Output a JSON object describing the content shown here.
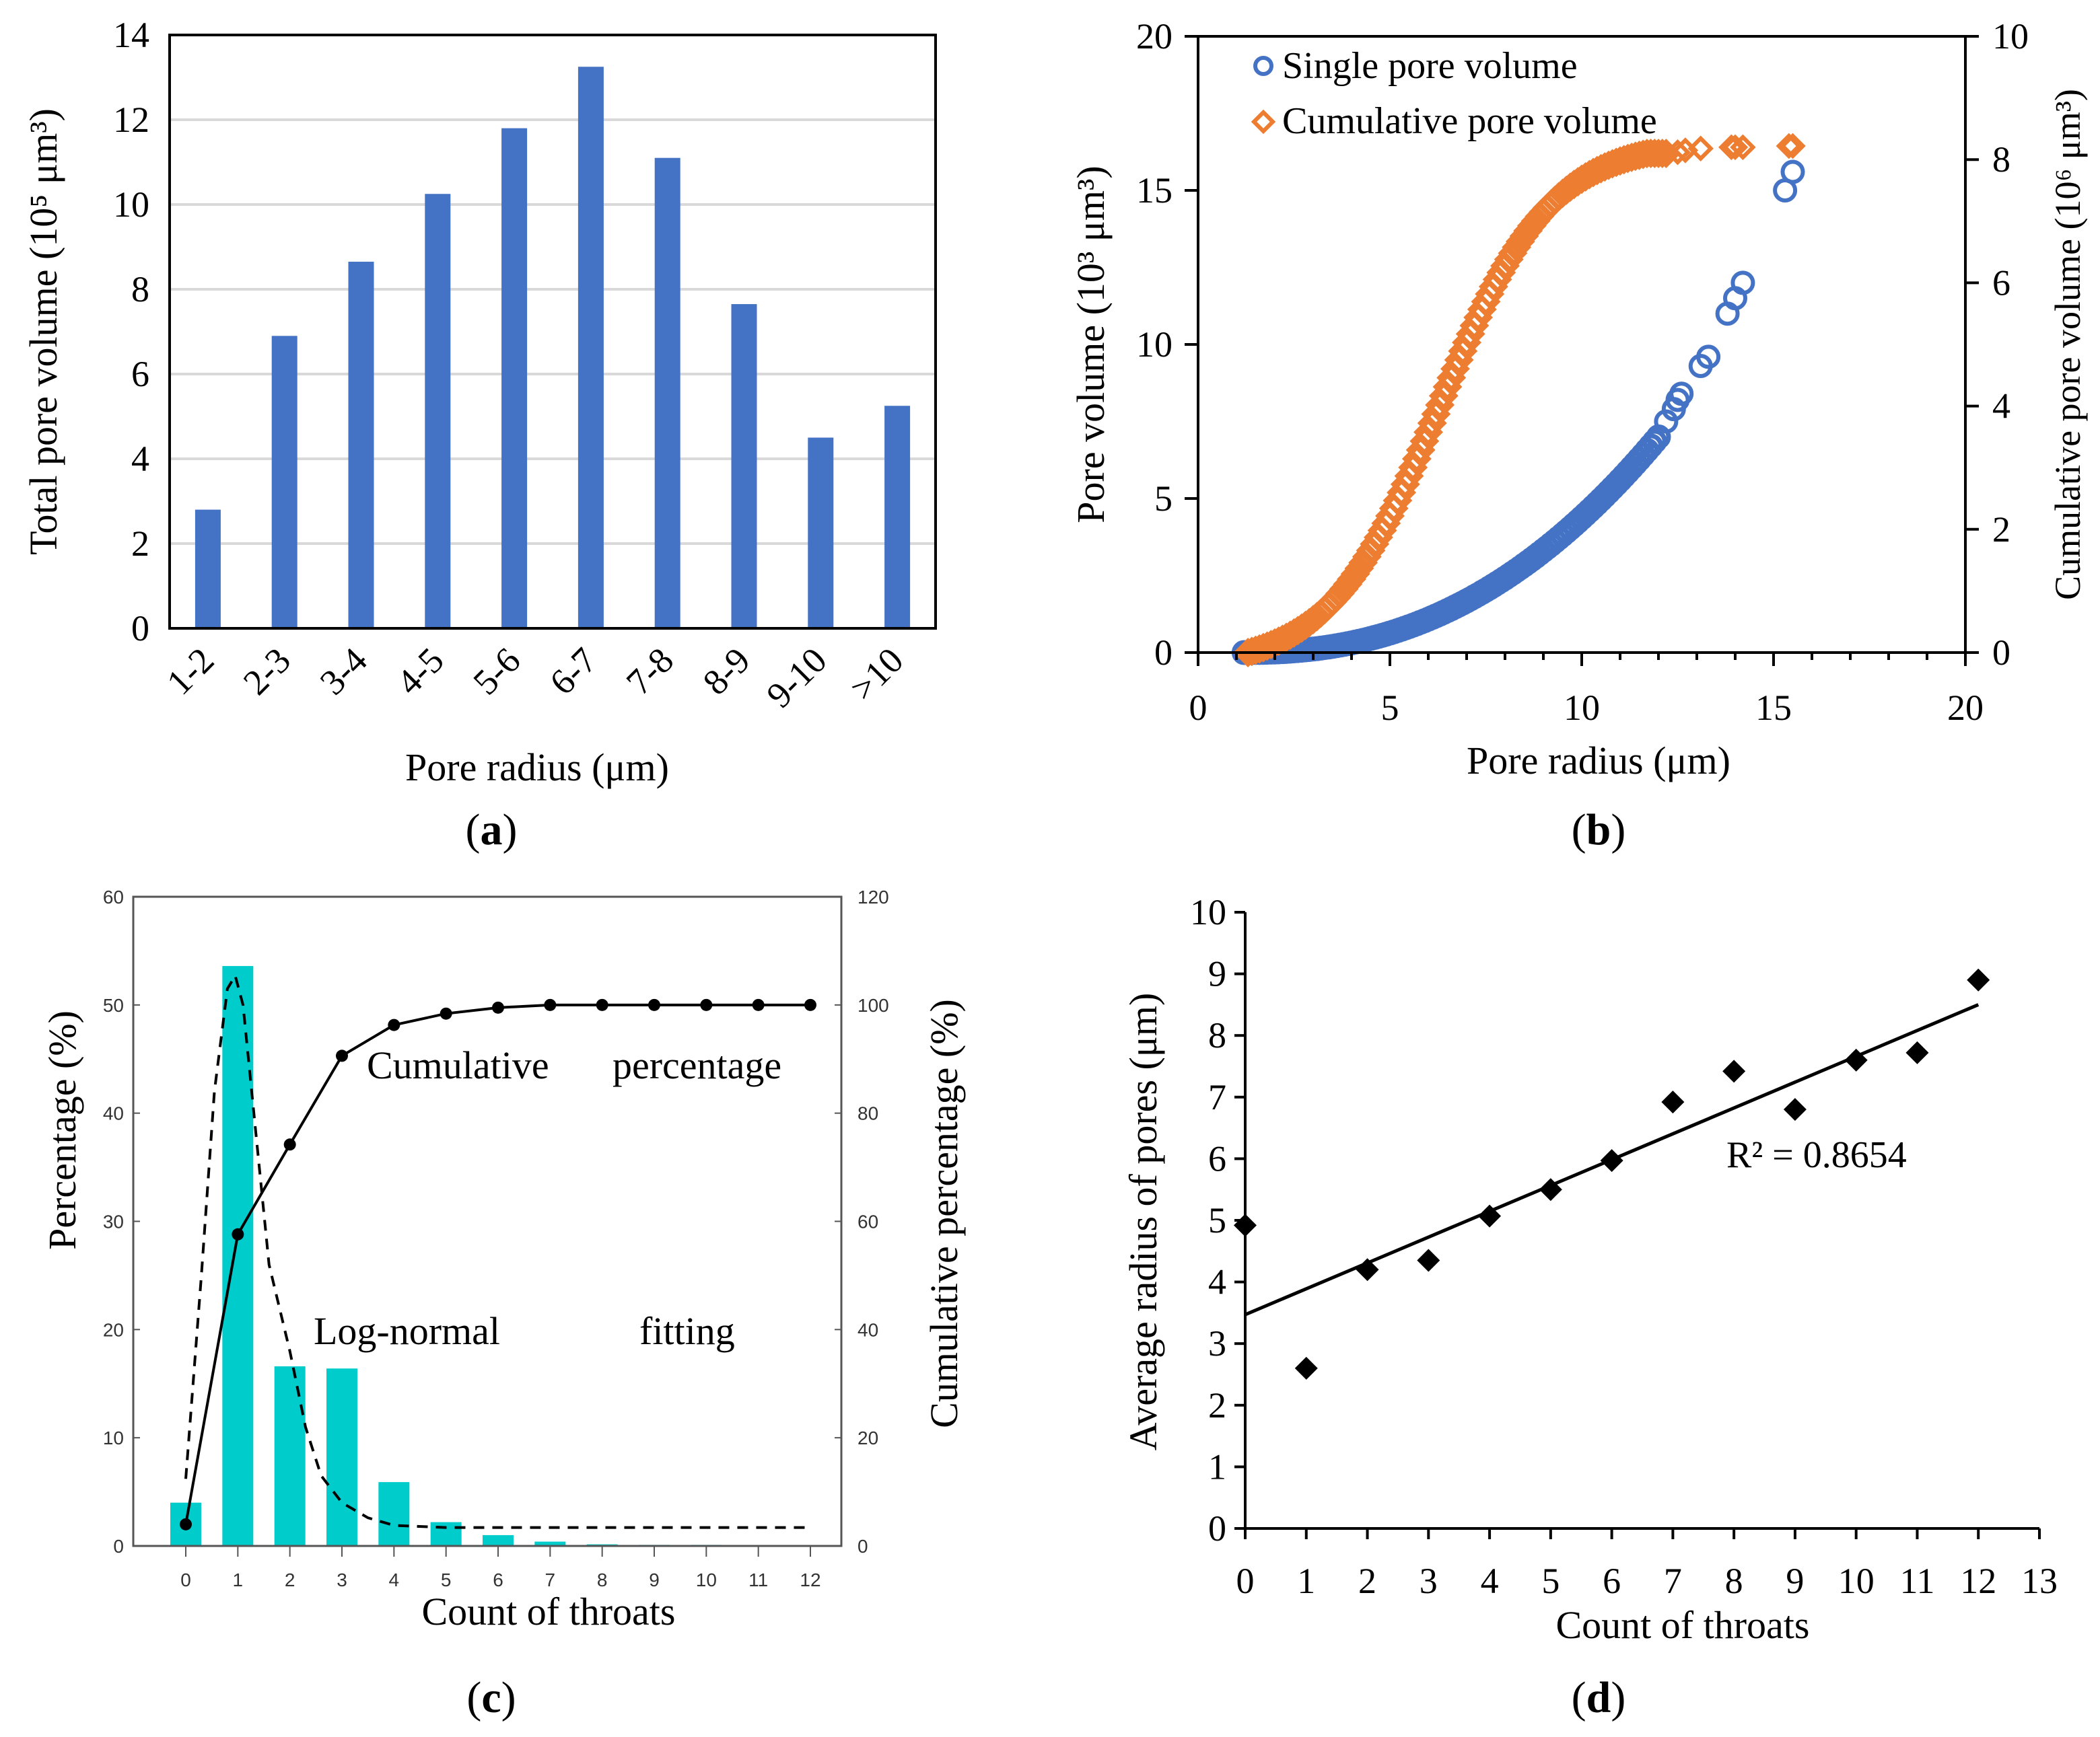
{
  "colors": {
    "bar_a": "#4472c4",
    "single": "#4472c4",
    "cumulative": "#ed7d31",
    "bar_c": "#00cccc",
    "grid": "#d9d9d9",
    "axis": "#000000"
  },
  "chart_data": [
    {
      "id": "a",
      "panel_label": "a",
      "type": "bar",
      "categories": [
        "1-2",
        "2-3",
        "3-4",
        "4-5",
        "5-6",
        "6-7",
        "7-8",
        "8-9",
        "9-10",
        ">10"
      ],
      "values": [
        2.8,
        6.9,
        8.65,
        10.25,
        11.8,
        13.25,
        11.1,
        7.65,
        4.5,
        5.25
      ],
      "xlabel": "Pore radius (μm)",
      "ylabel": "Total pore volume (10⁵ μm³)",
      "ylim": [
        0,
        14
      ],
      "yticks": [
        0,
        2,
        4,
        6,
        8,
        10,
        12,
        14
      ],
      "grid": true
    },
    {
      "id": "b",
      "panel_label": "b",
      "type": "scatter",
      "xlabel": "Pore radius (μm)",
      "ylabel": "Pore volume (10³ μm³)",
      "ylabel_right": "Cumulative pore volume (10⁶ μm³)",
      "xlim": [
        0,
        20
      ],
      "ylim": [
        0,
        20
      ],
      "ylim_right": [
        0,
        10
      ],
      "xticks": [
        0,
        5,
        10,
        15,
        20
      ],
      "yticks": [
        0,
        5,
        10,
        15,
        20
      ],
      "yticks_right": [
        0,
        2,
        4,
        6,
        8,
        10
      ],
      "legend_position": "top-left",
      "series": [
        {
          "name": "Single pore volume",
          "axis": "left",
          "marker": "circle",
          "curve": {
            "x_start": 1.2,
            "x_end": 12.0,
            "step": 0.1,
            "y_end": 7.0,
            "power": 2.3
          },
          "outliers": [
            [
              12.2,
              7.5
            ],
            [
              12.4,
              7.9
            ],
            [
              12.5,
              8.2
            ],
            [
              12.6,
              8.4
            ],
            [
              13.1,
              9.3
            ],
            [
              13.3,
              9.6
            ],
            [
              13.8,
              11.0
            ],
            [
              14.0,
              11.5
            ],
            [
              14.2,
              12.0
            ],
            [
              15.3,
              15.0
            ],
            [
              15.5,
              15.6
            ]
          ]
        },
        {
          "name": "Cumulative pore volume",
          "axis": "right",
          "marker": "diamond",
          "curve": {
            "x_start": 1.3,
            "x_end": 12.2,
            "step": 0.1,
            "plateau": 8.3,
            "midpoint": 6.3,
            "scale": 1.45
          },
          "outliers": [
            [
              12.5,
              8.12
            ],
            [
              12.7,
              8.15
            ],
            [
              13.1,
              8.18
            ],
            [
              13.9,
              8.2
            ],
            [
              14.0,
              8.2
            ],
            [
              14.2,
              8.2
            ],
            [
              15.4,
              8.22
            ],
            [
              15.5,
              8.22
            ]
          ]
        }
      ]
    },
    {
      "id": "c",
      "panel_label": "c",
      "type": "bar",
      "categories": [
        "0",
        "1",
        "2",
        "3",
        "4",
        "5",
        "6",
        "7",
        "8",
        "9",
        "10",
        "11",
        "12"
      ],
      "values": [
        4.0,
        53.6,
        16.6,
        16.4,
        5.9,
        2.2,
        1.0,
        0.4,
        0.15,
        0.1,
        0.1,
        0.05,
        0.0
      ],
      "cumulative": [
        4,
        57.6,
        74.2,
        90.6,
        96.3,
        98.4,
        99.5,
        100,
        100,
        100,
        100,
        100,
        100
      ],
      "lognormal_fit": [
        [
          0,
          6.2
        ],
        [
          0.3,
          25
        ],
        [
          0.55,
          42
        ],
        [
          0.8,
          51.5
        ],
        [
          0.95,
          52.7
        ],
        [
          1.1,
          50
        ],
        [
          1.35,
          38
        ],
        [
          1.6,
          26
        ],
        [
          2.0,
          18
        ],
        [
          2.3,
          11
        ],
        [
          2.6,
          6.5
        ],
        [
          3.0,
          4.0
        ],
        [
          3.5,
          2.6
        ],
        [
          4.0,
          1.9
        ],
        [
          5.0,
          1.7
        ],
        [
          12,
          1.7
        ]
      ],
      "xlabel": "Count of throats",
      "ylabel": "Percentage (%)",
      "ylabel_right": "Cumulative percentage (%)",
      "ylim": [
        0,
        60
      ],
      "ylim_right": [
        0,
        120
      ],
      "yticks": [
        0,
        10,
        20,
        30,
        40,
        50,
        60
      ],
      "yticks_right": [
        0,
        20,
        40,
        60,
        80,
        100,
        120
      ],
      "annotations": {
        "cum_1": "Cumulative",
        "cum_2": "percentage",
        "fit_1": "Log-normal",
        "fit_2": "fitting"
      }
    },
    {
      "id": "d",
      "panel_label": "d",
      "type": "scatter",
      "x": [
        0,
        1,
        2,
        3,
        4,
        5,
        6,
        7,
        8,
        9,
        10,
        11,
        12
      ],
      "y": [
        4.92,
        2.6,
        4.2,
        4.35,
        5.07,
        5.5,
        5.97,
        6.92,
        7.42,
        6.8,
        7.6,
        7.72,
        8.9
      ],
      "trendline": {
        "x": [
          0,
          12
        ],
        "y": [
          3.47,
          8.5
        ]
      },
      "r2_label": "R² = 0.8654",
      "xlabel": "Count of throats",
      "ylabel": "Average radius of pores (μm)",
      "xlim": [
        0,
        13
      ],
      "ylim": [
        0,
        10
      ],
      "xticks": [
        0,
        1,
        2,
        3,
        4,
        5,
        6,
        7,
        8,
        9,
        10,
        11,
        12,
        13
      ],
      "yticks": [
        0,
        1,
        2,
        3,
        4,
        5,
        6,
        7,
        8,
        9,
        10
      ]
    }
  ]
}
